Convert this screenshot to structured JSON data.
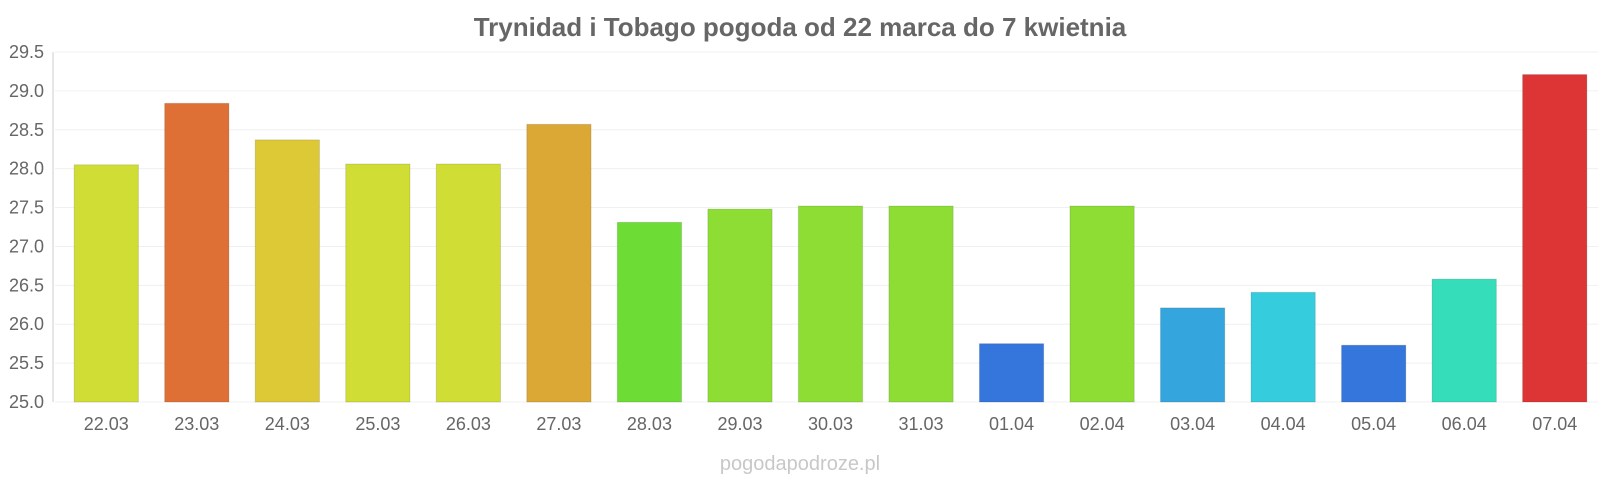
{
  "watermark": "pogodapodroze.pl",
  "chart_data": {
    "type": "bar",
    "title": "Trynidad i Tobago pogoda od 22 marca do 7 kwietnia",
    "xlabel": "",
    "ylabel": "",
    "ylim": [
      25.0,
      29.5
    ],
    "yticks": [
      "25.0",
      "25.5",
      "26.0",
      "26.5",
      "27.0",
      "27.5",
      "28.0",
      "28.5",
      "29.0",
      "29.5"
    ],
    "grid": true,
    "legend": "none",
    "categories": [
      "22.03",
      "23.03",
      "24.03",
      "25.03",
      "26.03",
      "27.03",
      "28.03",
      "29.03",
      "30.03",
      "31.03",
      "01.04",
      "02.04",
      "03.04",
      "04.04",
      "05.04",
      "06.04",
      "07.04"
    ],
    "values": [
      28.05,
      28.84,
      28.37,
      28.06,
      28.06,
      28.57,
      27.31,
      27.48,
      27.52,
      27.52,
      25.75,
      27.52,
      26.21,
      26.41,
      25.73,
      26.58,
      29.21
    ],
    "colors": [
      "#d0dd35",
      "#df7035",
      "#ddc935",
      "#d0dd35",
      "#d0dd35",
      "#dba835",
      "#6ddd35",
      "#8ddd35",
      "#8ddd35",
      "#8ddd35",
      "#3576dd",
      "#8ddd35",
      "#35a6dd",
      "#35cddd",
      "#3576dd",
      "#35ddbb",
      "#dd3535"
    ]
  }
}
